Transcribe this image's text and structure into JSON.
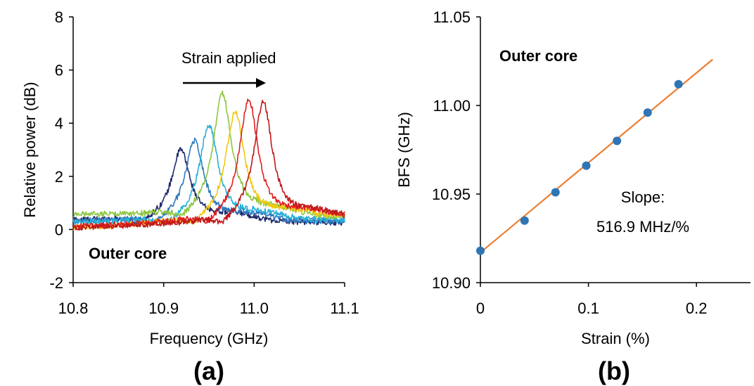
{
  "chart_data": [
    {
      "type": "line",
      "panel_label": "(a)",
      "xlabel": "Frequency (GHz)",
      "ylabel": "Relative power (dB)",
      "xlim": [
        10.8,
        11.1
      ],
      "ylim": [
        -2,
        8
      ],
      "xticks": [
        10.8,
        10.9,
        11.0,
        11.1
      ],
      "xtick_labels": [
        "10.8",
        "10.9",
        "11.0",
        "11.1"
      ],
      "yticks": [
        -2,
        0,
        2,
        4,
        6,
        8
      ],
      "ytick_labels": [
        "-2",
        "0",
        "2",
        "4",
        "6",
        "8"
      ],
      "grid": false,
      "annotations": {
        "arrow_label": "Strain applied",
        "corner_label": "Outer core"
      },
      "series": [
        {
          "color": "#1f2a6b",
          "center": 10.919,
          "peak": 3.0,
          "baseline_left": 0.35,
          "baseline_right": 0.25
        },
        {
          "color": "#2e7bbf",
          "center": 10.934,
          "peak": 3.35,
          "baseline_left": 0.3,
          "baseline_right": 0.3
        },
        {
          "color": "#29b0d8",
          "center": 10.95,
          "peak": 3.95,
          "baseline_left": 0.25,
          "baseline_right": 0.35
        },
        {
          "color": "#8dc63f",
          "center": 10.965,
          "peak": 5.1,
          "baseline_left": 0.55,
          "baseline_right": 0.45
        },
        {
          "color": "#f2c811",
          "center": 10.979,
          "peak": 4.45,
          "baseline_left": 0.05,
          "baseline_right": 0.5
        },
        {
          "color": "#e02020",
          "center": 10.994,
          "peak": 4.9,
          "baseline_left": 0.1,
          "baseline_right": 0.45
        },
        {
          "color": "#c01818",
          "center": 11.01,
          "peak": 4.8,
          "baseline_left": 0.05,
          "baseline_right": 0.4
        }
      ]
    },
    {
      "type": "scatter",
      "panel_label": "(b)",
      "xlabel": "Strain (%)",
      "ylabel": "BFS (GHz)",
      "xlim": [
        0,
        0.25
      ],
      "ylim": [
        10.9,
        11.05
      ],
      "xticks": [
        0,
        0.1,
        0.2
      ],
      "xtick_labels": [
        "0",
        "0.1",
        "0.2"
      ],
      "yticks": [
        10.9,
        10.95,
        11.0,
        11.05
      ],
      "ytick_labels": [
        "10.90",
        "10.95",
        "11.00",
        "11.05"
      ],
      "grid": false,
      "points_color": "#2e75b6",
      "fit_color": "#ed7d31",
      "x": [
        0,
        0.0409,
        0.0695,
        0.098,
        0.1264,
        0.1548,
        0.1834
      ],
      "y": [
        10.918,
        10.935,
        10.951,
        10.966,
        10.98,
        10.996,
        11.012
      ],
      "fit": {
        "x": [
          0,
          0.215
        ],
        "y": [
          10.917,
          11.026
        ]
      },
      "annotations": {
        "corner_label": "Outer core",
        "slope_label_1": "Slope:",
        "slope_label_2": "516.9 MHz/%"
      }
    }
  ]
}
